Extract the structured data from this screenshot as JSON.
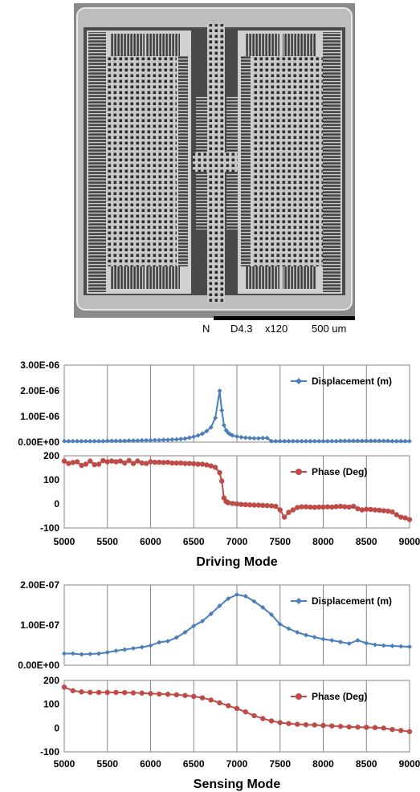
{
  "micrograph": {
    "scale_text": [
      "N",
      "D4.3",
      "x120",
      "500 um"
    ]
  },
  "chart_data": [
    {
      "type": "line",
      "title": "Driving Mode",
      "panels": [
        {
          "name": "displacement",
          "series": [
            {
              "name": "Displacement (m)",
              "color": "#4a7ebb",
              "marker": "diamond",
              "x": [
                5000,
                5050,
                5100,
                5150,
                5200,
                5250,
                5300,
                5350,
                5400,
                5450,
                5500,
                5550,
                5600,
                5650,
                5700,
                5750,
                5800,
                5850,
                5900,
                5950,
                6000,
                6050,
                6100,
                6150,
                6200,
                6250,
                6300,
                6350,
                6400,
                6450,
                6500,
                6550,
                6600,
                6650,
                6700,
                6750,
                6800,
                6825,
                6850,
                6875,
                6900,
                6925,
                6950,
                7000,
                7050,
                7100,
                7150,
                7200,
                7250,
                7300,
                7350,
                7400,
                7450,
                7500,
                7550,
                7600,
                7650,
                7700,
                7750,
                7800,
                7850,
                7900,
                7950,
                8000,
                8050,
                8100,
                8150,
                8200,
                8250,
                8300,
                8350,
                8400,
                8450,
                8500,
                8550,
                8600,
                8650,
                8700,
                8750,
                8800,
                8850,
                8900,
                8950,
                9000
              ],
              "y": [
                4e-08,
                4e-08,
                4e-08,
                4e-08,
                4e-08,
                4e-08,
                4e-08,
                4e-08,
                4e-08,
                4e-08,
                5e-08,
                5e-08,
                5e-08,
                5e-08,
                5e-08,
                6e-08,
                6e-08,
                6e-08,
                7e-08,
                7e-08,
                7e-08,
                8e-08,
                8e-08,
                9e-08,
                9e-08,
                1e-07,
                1.1e-07,
                1.2e-07,
                1.4e-07,
                1.7e-07,
                2.1e-07,
                2.6e-07,
                3.3e-07,
                4.3e-07,
                5.8e-07,
                9.4e-07,
                2e-06,
                1.24e-06,
                6.6e-07,
                4.6e-07,
                3.6e-07,
                3e-07,
                2.6e-07,
                2.2e-07,
                1.9e-07,
                1.7e-07,
                1.6e-07,
                1.5e-07,
                1.5e-07,
                1.6e-07,
                1.6e-07,
                4e-08,
                4e-08,
                4e-08,
                4e-08,
                4e-08,
                4e-08,
                4e-08,
                4e-08,
                4e-08,
                4e-08,
                4e-08,
                4e-08,
                4e-08,
                4e-08,
                4e-08,
                4e-08,
                5e-08,
                5e-08,
                5e-08,
                5e-08,
                5e-08,
                5e-08,
                5e-08,
                5e-08,
                5e-08,
                5e-08,
                5e-08,
                5e-08,
                4e-08,
                4e-08,
                4e-08,
                4e-08,
                4e-08
              ]
            }
          ],
          "ylim": [
            0,
            3e-06
          ],
          "yticks": [
            0,
            1e-06,
            2e-06,
            3e-06
          ],
          "yticklabels": [
            "0.00E+00",
            "1.00E-06",
            "2.00E-06",
            "3.00E-06"
          ],
          "legend": "right"
        },
        {
          "name": "phase",
          "series": [
            {
              "name": "Phase (Deg)",
              "color": "#be4b48",
              "marker": "circle",
              "x": [
                5000,
                5050,
                5100,
                5150,
                5200,
                5250,
                5300,
                5350,
                5400,
                5450,
                5500,
                5550,
                5600,
                5650,
                5700,
                5750,
                5800,
                5850,
                5900,
                5950,
                6000,
                6050,
                6100,
                6150,
                6200,
                6250,
                6300,
                6350,
                6400,
                6450,
                6500,
                6550,
                6600,
                6650,
                6700,
                6750,
                6800,
                6825,
                6850,
                6875,
                6900,
                6950,
                7000,
                7050,
                7100,
                7150,
                7200,
                7250,
                7300,
                7350,
                7400,
                7450,
                7500,
                7550,
                7600,
                7650,
                7700,
                7750,
                7800,
                7850,
                7900,
                7950,
                8000,
                8050,
                8100,
                8150,
                8200,
                8250,
                8300,
                8350,
                8400,
                8450,
                8500,
                8550,
                8600,
                8650,
                8700,
                8750,
                8800,
                8850,
                8900,
                8950,
                9000
              ],
              "y": [
                178,
                168,
                172,
                175,
                160,
                165,
                178,
                163,
                165,
                180,
                175,
                178,
                175,
                178,
                170,
                180,
                168,
                178,
                170,
                168,
                175,
                173,
                173,
                172,
                173,
                170,
                170,
                170,
                168,
                168,
                167,
                165,
                165,
                162,
                158,
                152,
                130,
                95,
                25,
                10,
                5,
                2,
                0,
                -2,
                -3,
                -4,
                -5,
                -5,
                -6,
                -7,
                -8,
                -10,
                -25,
                -55,
                -35,
                -25,
                -15,
                -12,
                -12,
                -13,
                -14,
                -13,
                -13,
                -12,
                -13,
                -11,
                -10,
                -12,
                -13,
                -10,
                -20,
                -25,
                -22,
                -23,
                -25,
                -26,
                -28,
                -30,
                -33,
                -45,
                -55,
                -58,
                -65
              ],
              "ylim": [
                -100,
                200
              ],
              "yticks": [
                -100,
                0,
                100,
                200
              ]
            }
          ],
          "legend": "right"
        }
      ],
      "xlim": [
        5000,
        9000
      ],
      "xticks": [
        5000,
        5500,
        6000,
        6500,
        7000,
        7500,
        8000,
        8500,
        9000
      ],
      "grid": "vertical"
    },
    {
      "type": "line",
      "title": "Sensing Mode",
      "panels": [
        {
          "name": "displacement",
          "series": [
            {
              "name": "Displacement (m)",
              "color": "#4a7ebb",
              "marker": "diamond",
              "x": [
                5000,
                5100,
                5200,
                5300,
                5400,
                5500,
                5600,
                5700,
                5800,
                5900,
                6000,
                6100,
                6200,
                6300,
                6400,
                6500,
                6600,
                6700,
                6800,
                6900,
                7000,
                7100,
                7200,
                7300,
                7400,
                7500,
                7600,
                7700,
                7800,
                7900,
                8000,
                8100,
                8200,
                8300,
                8400,
                8500,
                8600,
                8700,
                8800,
                8900,
                9000
              ],
              "y": [
                2.9e-08,
                2.9e-08,
                2.7e-08,
                2.8e-08,
                2.9e-08,
                3.2e-08,
                3.6e-08,
                3.9e-08,
                4.2e-08,
                4.5e-08,
                4.9e-08,
                5.7e-08,
                6e-08,
                6.9e-08,
                8.2e-08,
                9.8e-08,
                1.1e-07,
                1.28e-07,
                1.48e-07,
                1.66e-07,
                1.76e-07,
                1.72e-07,
                1.59e-07,
                1.44e-07,
                1.26e-07,
                1.02e-07,
                9.1e-08,
                8.2e-08,
                7.5e-08,
                7e-08,
                6.5e-08,
                6.2e-08,
                5.8e-08,
                5.4e-08,
                6.2e-08,
                5.5e-08,
                5.1e-08,
                4.9e-08,
                4.8e-08,
                4.7e-08,
                4.6e-08
              ]
            }
          ],
          "ylim": [
            0,
            2e-07
          ],
          "yticks": [
            0,
            1e-07,
            2e-07
          ],
          "yticklabels": [
            "0.00E+00",
            "1.00E-07",
            "2.00E-07"
          ],
          "legend": "right"
        },
        {
          "name": "phase",
          "series": [
            {
              "name": "Phase (Deg)",
              "color": "#be4b48",
              "marker": "circle",
              "x": [
                5000,
                5100,
                5200,
                5300,
                5400,
                5500,
                5600,
                5700,
                5800,
                5900,
                6000,
                6100,
                6200,
                6300,
                6400,
                6500,
                6600,
                6700,
                6800,
                6900,
                7000,
                7100,
                7200,
                7300,
                7400,
                7500,
                7600,
                7700,
                7800,
                7900,
                8000,
                8100,
                8200,
                8300,
                8400,
                8500,
                8600,
                8700,
                8800,
                8900,
                9000
              ],
              "y": [
                172,
                157,
                152,
                150,
                150,
                150,
                150,
                149,
                148,
                147,
                145,
                143,
                142,
                140,
                137,
                133,
                127,
                118,
                106,
                94,
                82,
                68,
                52,
                40,
                30,
                23,
                19,
                16,
                14,
                13,
                11,
                9,
                7,
                5,
                4,
                3,
                2,
                0,
                -6,
                -10,
                -15
              ],
              "ylim": [
                -100,
                200
              ],
              "yticks": [
                -100,
                0,
                100,
                200
              ]
            }
          ],
          "legend": "right"
        }
      ],
      "xlim": [
        5000,
        9000
      ],
      "xticks": [
        5000,
        5500,
        6000,
        6500,
        7000,
        7500,
        8000,
        8500,
        9000
      ],
      "grid": "vertical"
    }
  ]
}
